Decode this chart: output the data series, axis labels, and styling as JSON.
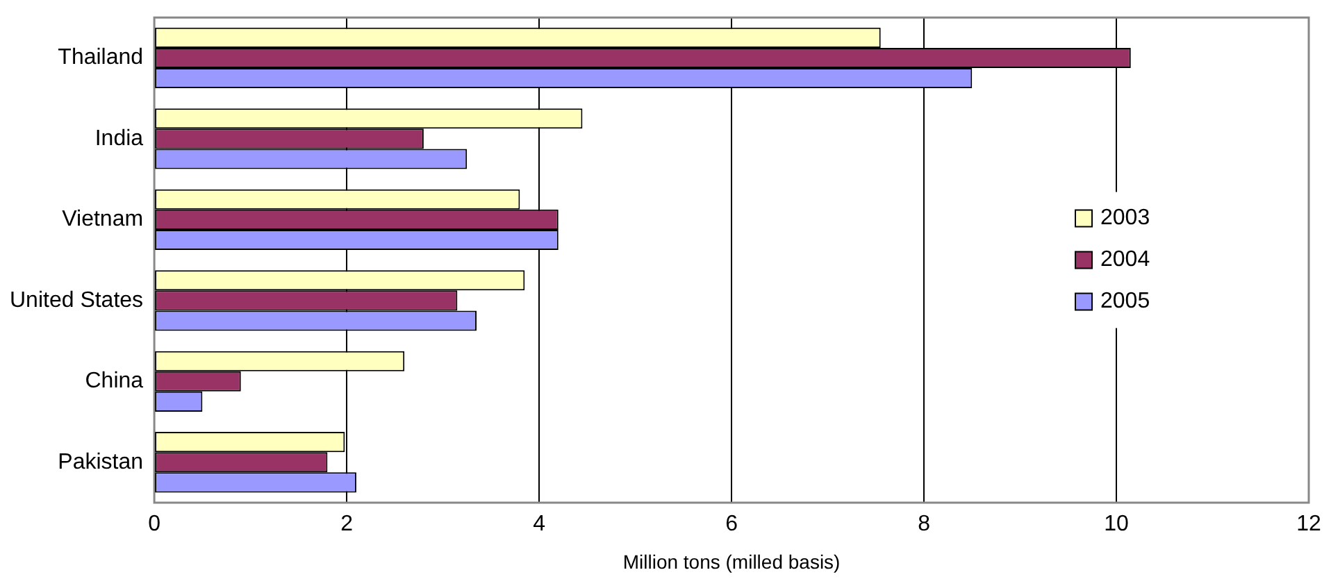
{
  "chart_data": {
    "type": "bar",
    "orientation": "horizontal",
    "xlabel": "Million tons (milled basis)",
    "categories": [
      "Thailand",
      "India",
      "Vietnam",
      "United States",
      "China",
      "Pakistan"
    ],
    "series": [
      {
        "name": "2003",
        "color": "#ffffc0",
        "values": [
          7.55,
          4.45,
          3.8,
          3.85,
          2.6,
          1.98
        ]
      },
      {
        "name": "2004",
        "color": "#993366",
        "values": [
          10.15,
          2.8,
          4.2,
          3.15,
          0.9,
          1.8
        ]
      },
      {
        "name": "2005",
        "color": "#9999ff",
        "values": [
          8.5,
          3.25,
          4.2,
          3.35,
          0.5,
          2.1
        ]
      }
    ],
    "xlim": [
      0,
      12
    ],
    "xticks": [
      0,
      2,
      4,
      6,
      8,
      10,
      12
    ],
    "grid": "x",
    "legend": "right"
  }
}
